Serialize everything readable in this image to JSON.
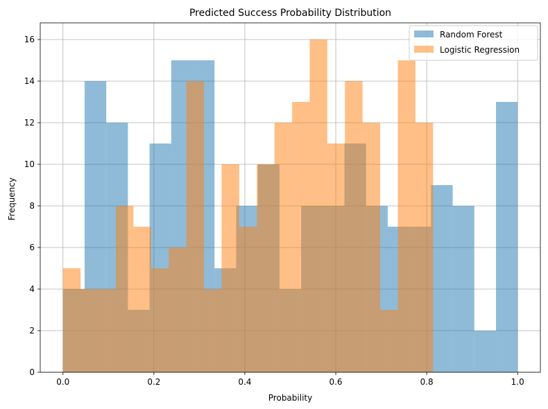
{
  "chart_data": {
    "type": "histogram",
    "title": "Predicted Success Probability Distribution",
    "xlabel": "Probability",
    "ylabel": "Frequency",
    "xlim": [
      -0.05,
      1.05
    ],
    "ylim": [
      0,
      16.8
    ],
    "xticks": [
      0.0,
      0.2,
      0.4,
      0.6,
      0.8,
      1.0
    ],
    "xtick_labels": [
      "0.0",
      "0.2",
      "0.4",
      "0.6",
      "0.8",
      "1.0"
    ],
    "yticks": [
      0,
      2,
      4,
      6,
      8,
      10,
      12,
      14,
      16
    ],
    "ytick_labels": [
      "0",
      "2",
      "4",
      "6",
      "8",
      "10",
      "12",
      "14",
      "16"
    ],
    "grid": true,
    "legend_position": "top-right",
    "alpha": 0.5,
    "series": [
      {
        "name": "Random Forest",
        "color": "#1f77b4",
        "bin_start": 0.0,
        "bin_end": 1.0,
        "counts": [
          4,
          14,
          12,
          3,
          11,
          15,
          15,
          5,
          8,
          10,
          4,
          8,
          8,
          11,
          8,
          7,
          7,
          9,
          8,
          2,
          13
        ]
      },
      {
        "name": "Logistic Regression",
        "color": "#ff7f0e",
        "bin_start": 0.0,
        "bin_end": 0.814,
        "counts": [
          5,
          4,
          4,
          8,
          7,
          5,
          6,
          14,
          4,
          10,
          7,
          10,
          12,
          13,
          16,
          11,
          14,
          12,
          3,
          15,
          12
        ]
      }
    ]
  }
}
